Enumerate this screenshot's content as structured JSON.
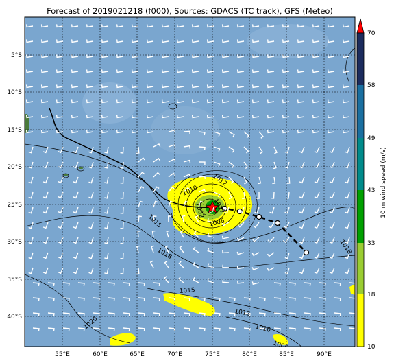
{
  "title": "Forecast of 2019021218 (f000), Sources: GDACS (TC track), GFS (Meteo)",
  "lon_ticks": [
    "55°E",
    "60°E",
    "65°E",
    "70°E",
    "75°E",
    "80°E",
    "85°E",
    "90°E"
  ],
  "lat_ticks": [
    "5°S",
    "10°S",
    "15°S",
    "20°S",
    "25°S",
    "30°S",
    "35°S",
    "40°S"
  ],
  "colorbar": {
    "label": "10 m wind speed (m/s)",
    "ticks": [
      "10",
      "18",
      "33",
      "43",
      "49",
      "58",
      "70"
    ],
    "colors": [
      "#ffff00",
      "#9acd32",
      "#00a000",
      "#008b8b",
      "#1a6fa0",
      "#1f4e79",
      "#1c2c5e"
    ],
    "extend_color": "#ff0000"
  },
  "contour_labels": [
    "1012",
    "1010",
    "1012",
    "1006",
    "1002",
    "1015",
    "1018",
    "1018",
    "1015",
    "1012",
    "1010",
    "1006",
    "1020"
  ],
  "colors": {
    "ocean": "#7aa6cf",
    "land": "#4a7a3a",
    "track": "#000000",
    "center_star": "#ff0000"
  }
}
